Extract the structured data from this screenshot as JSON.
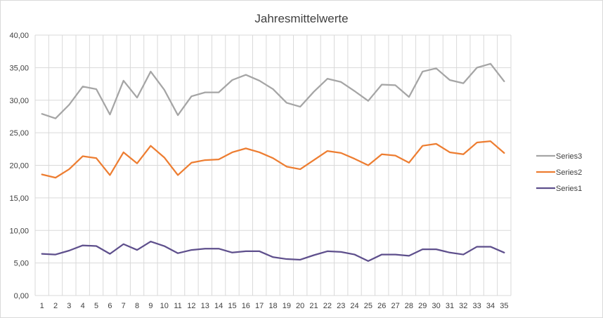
{
  "chart_data": {
    "type": "line",
    "title": "Jahresmittelwerte",
    "xlabel": "",
    "ylabel": "",
    "x": [
      1,
      2,
      3,
      4,
      5,
      6,
      7,
      8,
      9,
      10,
      11,
      12,
      13,
      14,
      15,
      16,
      17,
      18,
      19,
      20,
      21,
      22,
      23,
      24,
      25,
      26,
      27,
      28,
      29,
      30,
      31,
      32,
      33,
      34,
      35
    ],
    "ylim": [
      0,
      40
    ],
    "y_ticks": [
      "0,00",
      "5,00",
      "10,00",
      "15,00",
      "20,00",
      "25,00",
      "30,00",
      "35,00",
      "40,00"
    ],
    "grid": true,
    "legend_position": "right",
    "series": [
      {
        "name": "Series3",
        "color": "#a5a5a5",
        "values": [
          27.9,
          27.2,
          29.3,
          32.1,
          31.7,
          27.8,
          33.0,
          30.4,
          34.4,
          31.6,
          27.7,
          30.6,
          31.2,
          31.2,
          33.1,
          33.9,
          33.0,
          31.7,
          29.6,
          29.0,
          31.3,
          33.3,
          32.8,
          31.4,
          29.9,
          32.4,
          32.3,
          30.5,
          34.4,
          34.9,
          33.1,
          32.6,
          35.0,
          35.6,
          32.9
        ]
      },
      {
        "name": "Series2",
        "color": "#ed7d31",
        "values": [
          18.6,
          18.1,
          19.4,
          21.4,
          21.1,
          18.5,
          22.0,
          20.3,
          23.0,
          21.2,
          18.5,
          20.4,
          20.8,
          20.9,
          22.0,
          22.6,
          22.0,
          21.1,
          19.8,
          19.4,
          20.8,
          22.2,
          21.9,
          21.0,
          20.0,
          21.7,
          21.5,
          20.4,
          23.0,
          23.3,
          22.0,
          21.7,
          23.5,
          23.7,
          21.9
        ]
      },
      {
        "name": "Series1",
        "color": "#5e4f8c",
        "values": [
          6.4,
          6.3,
          6.9,
          7.7,
          7.6,
          6.4,
          7.9,
          7.0,
          8.3,
          7.6,
          6.5,
          7.0,
          7.2,
          7.2,
          6.6,
          6.8,
          6.8,
          5.9,
          5.6,
          5.5,
          6.2,
          6.8,
          6.7,
          6.3,
          5.3,
          6.3,
          6.3,
          6.1,
          7.1,
          7.1,
          6.6,
          6.3,
          7.5,
          7.5,
          6.6
        ]
      }
    ]
  }
}
